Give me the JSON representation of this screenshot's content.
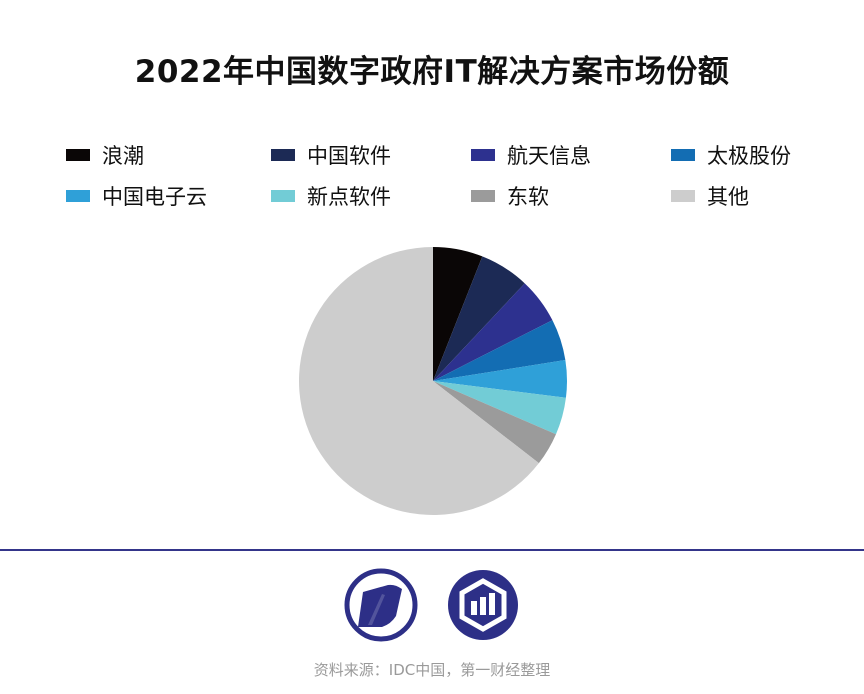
{
  "chart_data": {
    "type": "pie",
    "title": "2022年中国数字政府IT解决方案市场份额",
    "legend_position": "top",
    "slices": [
      {
        "label": "浪潮",
        "value": 6.0,
        "color": "#0a0606"
      },
      {
        "label": "中国软件",
        "value": 6.0,
        "color": "#1c2a55"
      },
      {
        "label": "航天信息",
        "value": 5.5,
        "color": "#2d318f"
      },
      {
        "label": "太极股份",
        "value": 5.0,
        "color": "#136db3"
      },
      {
        "label": "中国电子云",
        "value": 4.5,
        "color": "#2fa0d8"
      },
      {
        "label": "新点软件",
        "value": 4.5,
        "color": "#72ccd6"
      },
      {
        "label": "东软",
        "value": 4.0,
        "color": "#9b9b9b"
      },
      {
        "label": "其他",
        "value": 64.5,
        "color": "#cdcdcd"
      }
    ]
  },
  "footer": {
    "source": "资料来源：IDC中国，第一财经整理",
    "divider_color": "#34358a",
    "logos": [
      "publication-logo-icon",
      "bar-chart-logo-icon"
    ]
  }
}
